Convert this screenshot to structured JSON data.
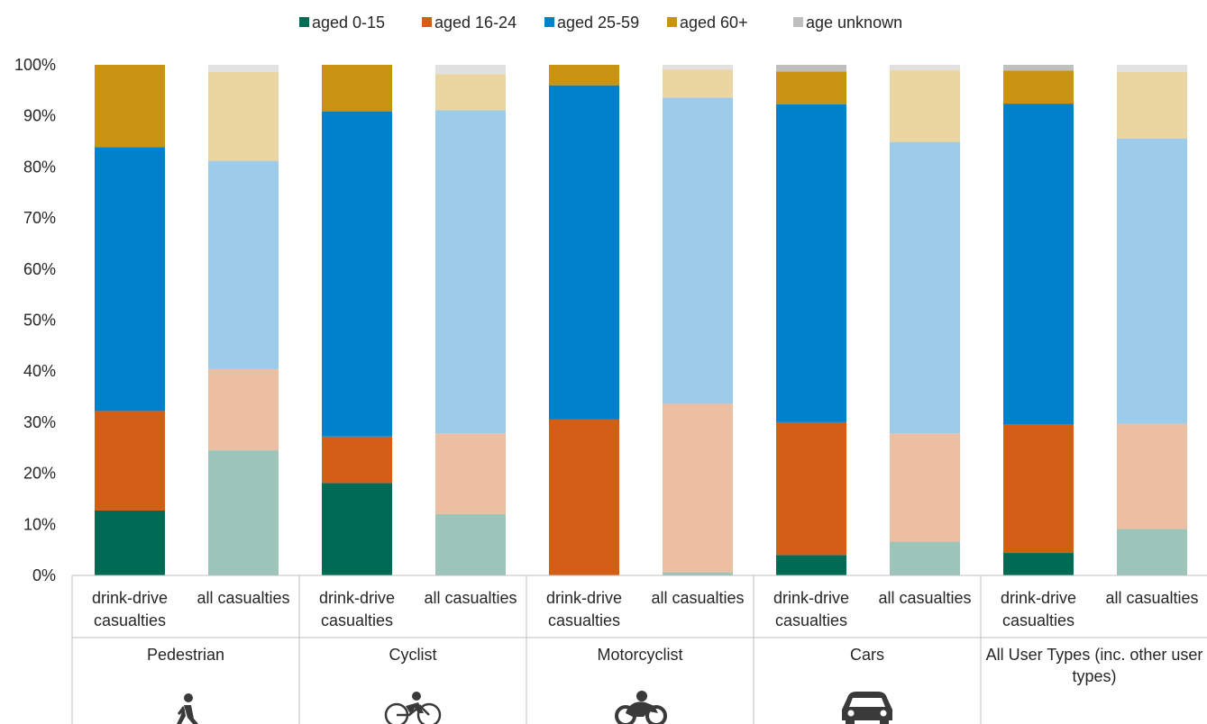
{
  "chart_data": {
    "type": "bar",
    "stacked": true,
    "normalized": true,
    "title": "",
    "xlabel": "",
    "ylabel": "",
    "ylim": [
      0,
      100
    ],
    "y_ticks": [
      "0%",
      "10%",
      "20%",
      "30%",
      "40%",
      "50%",
      "60%",
      "70%",
      "80%",
      "90%",
      "100%"
    ],
    "grid": false,
    "legend_position": "top",
    "groups": [
      "Pedestrian",
      "Cyclist",
      "Motorcyclist",
      "Cars",
      "All User Types (inc. other user types)"
    ],
    "group_icons": [
      "pedestrian-icon",
      "cyclist-icon",
      "motorcyclist-icon",
      "car-icon",
      ""
    ],
    "bar_types": [
      "drink-drive casualties",
      "all casualties"
    ],
    "series": [
      {
        "name": "aged 0-15",
        "color": "#006B54",
        "light_color": "#9CC4B8",
        "values": [
          12.7,
          24.5,
          18.1,
          12.0,
          0.0,
          0.6,
          4.0,
          6.6,
          4.4,
          9.1
        ]
      },
      {
        "name": "aged 16-24",
        "color": "#D35F16",
        "light_color": "#EDBFA2",
        "values": [
          19.5,
          15.9,
          9.1,
          15.8,
          30.6,
          33.0,
          26.0,
          21.2,
          25.1,
          20.6
        ]
      },
      {
        "name": "aged 25-59",
        "color": "#0081CC",
        "light_color": "#9DCCEA",
        "values": [
          51.7,
          40.8,
          63.7,
          63.3,
          65.4,
          60.0,
          62.3,
          57.1,
          62.9,
          55.9
        ]
      },
      {
        "name": "aged 60+",
        "color": "#C99412",
        "light_color": "#EBD6A2",
        "values": [
          16.1,
          17.4,
          9.1,
          7.1,
          4.0,
          5.5,
          6.4,
          14.1,
          6.5,
          13.0
        ]
      },
      {
        "name": "age unknown",
        "color": "#BFBFBF",
        "light_color": "#E1E1E1",
        "values": [
          0.0,
          1.4,
          0.0,
          1.8,
          0.0,
          0.9,
          1.3,
          1.0,
          1.1,
          1.4
        ]
      }
    ]
  }
}
